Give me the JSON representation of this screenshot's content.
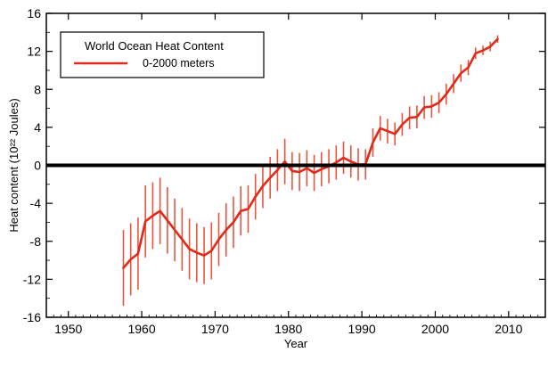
{
  "chart_data": {
    "type": "line",
    "title": "",
    "xlabel": "Year",
    "ylabel": "Heat content (10²² Joules)",
    "xlim": [
      1947,
      2015
    ],
    "ylim": [
      -16,
      16
    ],
    "xticks": [
      1950,
      1960,
      1970,
      1980,
      1990,
      2000,
      2010
    ],
    "yticks": [
      -16,
      -12,
      -8,
      -4,
      0,
      4,
      8,
      12,
      16
    ],
    "grid": false,
    "zero_line": true,
    "legend": {
      "title": "World Ocean Heat Content",
      "position": "top-left"
    },
    "series": [
      {
        "name": "0-2000 meters",
        "color": "#e02b1a",
        "error_bar_color": "#e8553f",
        "x": [
          1957.5,
          1958.5,
          1959.5,
          1960.5,
          1961.5,
          1962.5,
          1963.5,
          1964.5,
          1965.5,
          1966.5,
          1967.5,
          1968.5,
          1969.5,
          1970.5,
          1971.5,
          1972.5,
          1973.5,
          1974.5,
          1975.5,
          1976.5,
          1977.5,
          1978.5,
          1979.5,
          1980.5,
          1981.5,
          1982.5,
          1983.5,
          1984.5,
          1985.5,
          1986.5,
          1987.5,
          1988.5,
          1989.5,
          1990.5,
          1991.5,
          1992.5,
          1993.5,
          1994.5,
          1995.5,
          1996.5,
          1997.5,
          1998.5,
          1999.5,
          2000.5,
          2001.5,
          2002.5,
          2003.5,
          2004.5,
          2005.5,
          2006.5,
          2007.5,
          2008.5
        ],
        "y": [
          -10.8,
          -9.9,
          -9.3,
          -5.9,
          -5.3,
          -4.8,
          -5.8,
          -6.8,
          -7.8,
          -8.8,
          -9.2,
          -9.5,
          -9.0,
          -7.8,
          -6.8,
          -6.0,
          -4.8,
          -4.6,
          -3.3,
          -2.2,
          -1.3,
          -0.5,
          0.4,
          -0.6,
          -0.7,
          -0.3,
          -0.8,
          -0.4,
          -0.1,
          0.3,
          0.8,
          0.4,
          0.1,
          0.1,
          2.4,
          3.9,
          3.6,
          3.3,
          4.3,
          5.0,
          5.1,
          6.1,
          6.2,
          6.6,
          7.5,
          8.6,
          9.7,
          10.3,
          11.8,
          12.1,
          12.5,
          13.3
        ],
        "error": [
          4.0,
          3.8,
          3.8,
          3.8,
          3.5,
          3.5,
          3.5,
          3.3,
          3.3,
          3.2,
          3.1,
          3.0,
          3.0,
          2.8,
          2.8,
          2.7,
          2.6,
          2.5,
          2.4,
          2.3,
          2.2,
          2.2,
          2.4,
          2.0,
          2.0,
          1.9,
          1.9,
          1.8,
          1.8,
          1.8,
          1.7,
          1.7,
          1.7,
          1.6,
          1.5,
          1.3,
          1.3,
          1.2,
          1.2,
          1.2,
          1.2,
          1.2,
          1.2,
          1.1,
          1.1,
          1.0,
          0.9,
          0.8,
          0.6,
          0.5,
          0.5,
          0.4
        ]
      }
    ]
  }
}
